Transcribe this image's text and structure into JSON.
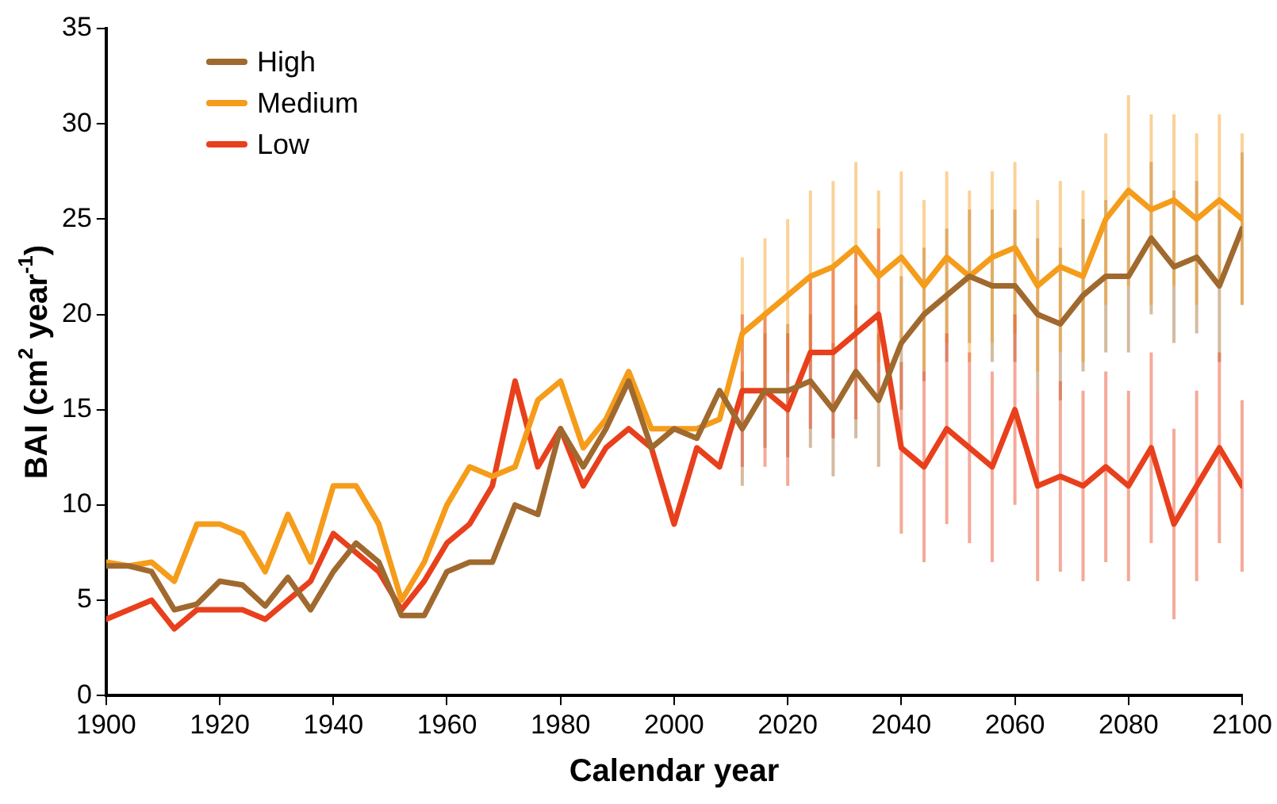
{
  "chart_data": {
    "type": "line",
    "xlabel": "Calendar year",
    "ylabel": "BAI (cm$^{2}$ year$^{-1}$)",
    "x": [
      1900,
      1904,
      1908,
      1912,
      1916,
      1920,
      1924,
      1928,
      1932,
      1936,
      1940,
      1944,
      1948,
      1952,
      1956,
      1960,
      1964,
      1968,
      1972,
      1976,
      1980,
      1984,
      1988,
      1992,
      1996,
      2000,
      2004,
      2008,
      2012,
      2016,
      2020,
      2024,
      2028,
      2032,
      2036,
      2040,
      2044,
      2048,
      2052,
      2056,
      2060,
      2064,
      2068,
      2072,
      2076,
      2080,
      2084,
      2088,
      2092,
      2096,
      2100
    ],
    "xlim": [
      1900,
      2100
    ],
    "xticks": [
      1900,
      1920,
      1940,
      1960,
      1980,
      2000,
      2020,
      2040,
      2060,
      2080,
      2100
    ],
    "ylim": [
      0,
      35
    ],
    "yticks": [
      0,
      5,
      10,
      15,
      20,
      25,
      30,
      35
    ],
    "grid": false,
    "legend": "top left",
    "marker": "none",
    "line_style": "solid",
    "series": [
      {
        "name": "High",
        "color": "#a0692e",
        "values": [
          6.8,
          6.8,
          6.5,
          4.5,
          4.8,
          6.0,
          5.8,
          4.7,
          6.2,
          4.5,
          6.5,
          8.0,
          7.0,
          4.2,
          4.2,
          6.5,
          7.0,
          7.0,
          10,
          9.5,
          14,
          12,
          14,
          16.5,
          13,
          14,
          13.5,
          16,
          14,
          16,
          16,
          16.5,
          15,
          17,
          15.5,
          18.5,
          20,
          21,
          22,
          21.5,
          21.5,
          20,
          19.5,
          21,
          22,
          22,
          24,
          22.5,
          23,
          21.5,
          24.5
        ],
        "errors": [
          null,
          null,
          null,
          null,
          null,
          null,
          null,
          null,
          null,
          null,
          null,
          null,
          null,
          null,
          null,
          null,
          null,
          null,
          null,
          null,
          null,
          null,
          null,
          null,
          null,
          null,
          null,
          null,
          3,
          3,
          3.5,
          3.5,
          3.5,
          3.5,
          3.5,
          3.5,
          3.5,
          3.5,
          3.5,
          4,
          4,
          4,
          4,
          4,
          4,
          4,
          4,
          4,
          4,
          4,
          4
        ]
      },
      {
        "name": "Medium",
        "color": "#f59c1a",
        "values": [
          7.0,
          6.8,
          7.0,
          6.0,
          9.0,
          9.0,
          8.5,
          6.5,
          9.5,
          7.0,
          11.0,
          11.0,
          9.0,
          5.0,
          7.0,
          10.0,
          12.0,
          11.5,
          12.0,
          15.5,
          16.5,
          13,
          14.5,
          17,
          14,
          14,
          14,
          14.5,
          19,
          20,
          21,
          22,
          22.5,
          23.5,
          22,
          23,
          21.5,
          23,
          22,
          23,
          23.5,
          21.5,
          22.5,
          22,
          25,
          26.5,
          25.5,
          26,
          25,
          26,
          25
        ],
        "errors": [
          null,
          null,
          null,
          null,
          null,
          null,
          null,
          null,
          null,
          null,
          null,
          null,
          null,
          null,
          null,
          null,
          null,
          null,
          null,
          null,
          null,
          null,
          null,
          null,
          null,
          null,
          null,
          null,
          4,
          4,
          4,
          4.5,
          4.5,
          4.5,
          4.5,
          4.5,
          4.5,
          4.5,
          4.5,
          4.5,
          4.5,
          4.5,
          4.5,
          4.5,
          4.5,
          5,
          5,
          4.5,
          4.5,
          4.5,
          4.5
        ]
      },
      {
        "name": "Low",
        "color": "#e8401c",
        "values": [
          4.0,
          4.5,
          5.0,
          3.5,
          4.5,
          4.5,
          4.5,
          4.0,
          5.0,
          6.0,
          8.5,
          7.5,
          6.5,
          4.5,
          6.0,
          8.0,
          9.0,
          11.0,
          16.5,
          12,
          14,
          11,
          13,
          14,
          13,
          9,
          13,
          12,
          16,
          16,
          15,
          18,
          18,
          19,
          20,
          13,
          12,
          14,
          13,
          12,
          15,
          11,
          11.5,
          11,
          12,
          11,
          13,
          9,
          11,
          13,
          11
        ],
        "errors": [
          null,
          null,
          null,
          null,
          null,
          null,
          null,
          null,
          null,
          null,
          null,
          null,
          null,
          null,
          null,
          null,
          null,
          null,
          null,
          null,
          null,
          null,
          null,
          null,
          null,
          null,
          null,
          null,
          4,
          4,
          4,
          4,
          4.5,
          4.5,
          4.5,
          4.5,
          5,
          5,
          5,
          5,
          5,
          5,
          5,
          5,
          5,
          5,
          5,
          5,
          5,
          5,
          4.5
        ]
      }
    ]
  }
}
